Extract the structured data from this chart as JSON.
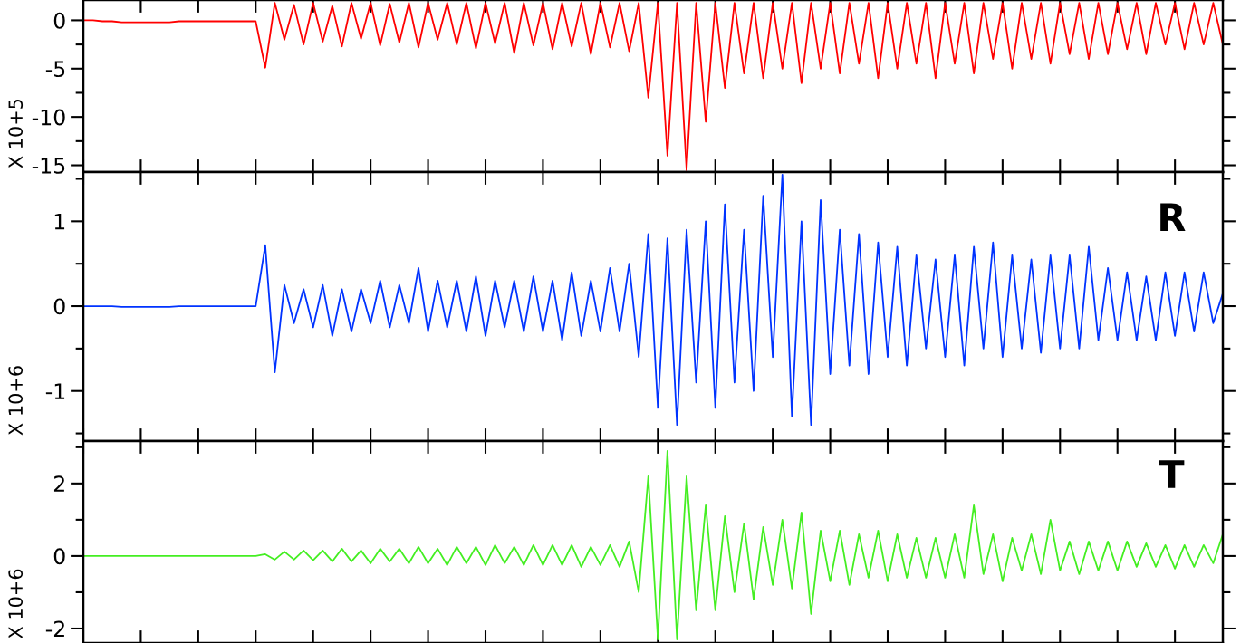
{
  "chart_data": [
    {
      "type": "line",
      "ylabel": "X 10+5",
      "ylim": [
        -15.7,
        2.1
      ],
      "yticks": [
        0,
        -5,
        -10,
        -15
      ],
      "categories": [
        null,
        null,
        null,
        null,
        null,
        null,
        null,
        null,
        null,
        null,
        null,
        null,
        null,
        null,
        null,
        null,
        null,
        null,
        null,
        null,
        null,
        null,
        null,
        null,
        null,
        null,
        null,
        null,
        null,
        null,
        null,
        null,
        null,
        null,
        null,
        null,
        null,
        null,
        null,
        null,
        null,
        null,
        null,
        null,
        null,
        null,
        null,
        null,
        null,
        null,
        null,
        null,
        null,
        null,
        null,
        null,
        null,
        null,
        null,
        null,
        null,
        null,
        null,
        null,
        null,
        null,
        null,
        null,
        null,
        null,
        null,
        null,
        null,
        null,
        null,
        null,
        null,
        null,
        null,
        null,
        null,
        null,
        null,
        null,
        null,
        null,
        null,
        null,
        null,
        null,
        null,
        null,
        null,
        null,
        null,
        null,
        null,
        null,
        null,
        null,
        null,
        null,
        null,
        null,
        null,
        null,
        null,
        null,
        null,
        null,
        null,
        null,
        null,
        null,
        null,
        null,
        null,
        null,
        null,
        null
      ],
      "series": [
        {
          "color": "#ff0000",
          "values": [
            0,
            0,
            -0.1,
            -0.1,
            -0.2,
            -0.2,
            -0.2,
            -0.2,
            -0.2,
            -0.2,
            -0.1,
            -0.1,
            -0.1,
            -0.1,
            -0.1,
            -0.1,
            -0.1,
            -0.1,
            -0.1,
            -4.9,
            1.8,
            -2.0,
            1.6,
            -2.5,
            1.8,
            -2.2,
            1.5,
            -2.7,
            1.8,
            -1.9,
            1.8,
            -2.6,
            1.7,
            -2.3,
            1.8,
            -2.8,
            1.8,
            -2.0,
            1.8,
            -2.5,
            1.8,
            -2.9,
            1.8,
            -2.4,
            1.8,
            -3.4,
            1.8,
            -2.6,
            1.8,
            -3.0,
            1.8,
            -2.7,
            1.8,
            -3.5,
            1.8,
            -2.8,
            1.8,
            -3.2,
            1.8,
            -8.0,
            1.8,
            -14,
            1.8,
            -15.5,
            1.8,
            -10.5,
            1.8,
            -7,
            1.8,
            -5.5,
            1.8,
            -6,
            1.8,
            -5,
            1.8,
            -6.5,
            1.8,
            -5,
            1.8,
            -5.5,
            1.8,
            -4.5,
            1.8,
            -6,
            1.8,
            -5,
            1.8,
            -4.5,
            1.8,
            -6,
            1.8,
            -4.5,
            1.8,
            -5.5,
            1.8,
            -4,
            1.8,
            -5,
            1.8,
            -4,
            1.8,
            -4.5,
            1.8,
            -3.5,
            1.8,
            -4,
            1.8,
            -3.5,
            1.8,
            -3,
            1.8,
            -3.5,
            1.8,
            -2.5,
            1.8,
            -3,
            1.8,
            -2.5,
            1.8,
            -2.5
          ]
        }
      ]
    },
    {
      "type": "line",
      "ylabel": "X 10+6",
      "ylim": [
        -1.59,
        1.58
      ],
      "yticks": [
        1,
        0,
        -1
      ],
      "annotations": [
        "R"
      ],
      "categories": [
        null,
        null,
        null,
        null,
        null,
        null,
        null,
        null,
        null,
        null,
        null,
        null,
        null,
        null,
        null,
        null,
        null,
        null,
        null,
        null,
        null,
        null,
        null,
        null,
        null,
        null,
        null,
        null,
        null,
        null,
        null,
        null,
        null,
        null,
        null,
        null,
        null,
        null,
        null,
        null,
        null,
        null,
        null,
        null,
        null,
        null,
        null,
        null,
        null,
        null,
        null,
        null,
        null,
        null,
        null,
        null,
        null,
        null,
        null,
        null,
        null,
        null,
        null,
        null,
        null,
        null,
        null,
        null,
        null,
        null,
        null,
        null,
        null,
        null,
        null,
        null,
        null,
        null,
        null,
        null,
        null,
        null,
        null,
        null,
        null,
        null,
        null,
        null,
        null,
        null,
        null,
        null,
        null,
        null,
        null,
        null,
        null,
        null,
        null,
        null,
        null,
        null,
        null,
        null,
        null,
        null,
        null,
        null,
        null,
        null,
        null,
        null,
        null,
        null,
        null,
        null,
        null,
        null,
        null,
        null
      ],
      "series": [
        {
          "color": "#0033ff",
          "values": [
            0,
            0,
            0,
            0,
            -0.01,
            -0.01,
            -0.01,
            -0.01,
            -0.01,
            -0.01,
            0,
            0,
            0,
            0,
            0,
            0,
            0,
            0,
            0,
            0.72,
            -0.78,
            0.25,
            -0.2,
            0.2,
            -0.25,
            0.25,
            -0.35,
            0.2,
            -0.3,
            0.2,
            -0.2,
            0.3,
            -0.25,
            0.25,
            -0.2,
            0.45,
            -0.3,
            0.3,
            -0.25,
            0.3,
            -0.3,
            0.35,
            -0.35,
            0.3,
            -0.25,
            0.3,
            -0.3,
            0.35,
            -0.3,
            0.3,
            -0.4,
            0.4,
            -0.35,
            0.3,
            -0.3,
            0.45,
            -0.3,
            0.5,
            -0.6,
            0.85,
            -1.2,
            0.8,
            -1.4,
            0.9,
            -0.9,
            1.0,
            -1.2,
            1.2,
            -0.9,
            0.9,
            -1.0,
            1.3,
            -0.6,
            1.55,
            -1.3,
            1.0,
            -1.4,
            1.25,
            -0.8,
            0.9,
            -0.7,
            0.85,
            -0.8,
            0.75,
            -0.6,
            0.7,
            -0.7,
            0.6,
            -0.5,
            0.55,
            -0.6,
            0.6,
            -0.7,
            0.7,
            -0.5,
            0.75,
            -0.6,
            0.6,
            -0.5,
            0.55,
            -0.55,
            0.6,
            -0.5,
            0.6,
            -0.5,
            0.7,
            -0.4,
            0.45,
            -0.4,
            0.4,
            -0.4,
            0.35,
            -0.4,
            0.4,
            -0.35,
            0.4,
            -0.3,
            0.4,
            -0.2,
            0.15
          ]
        }
      ]
    },
    {
      "type": "line",
      "ylabel": "X 10+6",
      "ylim": [
        -2.4,
        3.17
      ],
      "yticks": [
        2,
        0,
        -2
      ],
      "annotations": [
        "T"
      ],
      "categories": [
        null,
        null,
        null,
        null,
        null,
        null,
        null,
        null,
        null,
        null,
        null,
        null,
        null,
        null,
        null,
        null,
        null,
        null,
        null,
        null,
        null,
        null,
        null,
        null,
        null,
        null,
        null,
        null,
        null,
        null,
        null,
        null,
        null,
        null,
        null,
        null,
        null,
        null,
        null,
        null,
        null,
        null,
        null,
        null,
        null,
        null,
        null,
        null,
        null,
        null,
        null,
        null,
        null,
        null,
        null,
        null,
        null,
        null,
        null,
        null,
        null,
        null,
        null,
        null,
        null,
        null,
        null,
        null,
        null,
        null,
        null,
        null,
        null,
        null,
        null,
        null,
        null,
        null,
        null,
        null,
        null,
        null,
        null,
        null,
        null,
        null,
        null,
        null,
        null,
        null,
        null,
        null,
        null,
        null,
        null,
        null,
        null,
        null,
        null,
        null,
        null,
        null,
        null,
        null,
        null,
        null,
        null,
        null,
        null,
        null,
        null,
        null,
        null,
        null,
        null,
        null,
        null,
        null,
        null,
        null
      ],
      "series": [
        {
          "color": "#44ee22",
          "values": [
            0,
            0,
            0,
            0,
            0,
            0,
            0,
            0,
            0,
            0,
            0,
            0,
            0,
            0,
            0,
            0,
            0,
            0,
            0,
            0.05,
            -0.1,
            0.12,
            -0.1,
            0.15,
            -0.12,
            0.15,
            -0.15,
            0.2,
            -0.15,
            0.15,
            -0.2,
            0.2,
            -0.15,
            0.2,
            -0.2,
            0.25,
            -0.2,
            0.2,
            -0.25,
            0.25,
            -0.2,
            0.25,
            -0.25,
            0.3,
            -0.2,
            0.25,
            -0.25,
            0.3,
            -0.25,
            0.3,
            -0.25,
            0.3,
            -0.3,
            0.25,
            -0.25,
            0.3,
            -0.3,
            0.4,
            -1.0,
            2.2,
            -2.3,
            2.9,
            -2.3,
            2.2,
            -1.5,
            1.4,
            -1.5,
            1.1,
            -1.0,
            0.9,
            -1.2,
            0.8,
            -0.8,
            1.0,
            -0.9,
            1.2,
            -1.6,
            0.7,
            -0.7,
            0.7,
            -0.8,
            0.6,
            -0.6,
            0.7,
            -0.7,
            0.6,
            -0.6,
            0.5,
            -0.6,
            0.5,
            -0.6,
            0.6,
            -0.6,
            1.4,
            -0.5,
            0.6,
            -0.7,
            0.5,
            -0.4,
            0.6,
            -0.5,
            1.0,
            -0.4,
            0.4,
            -0.5,
            0.4,
            -0.4,
            0.4,
            -0.4,
            0.4,
            -0.3,
            0.35,
            -0.3,
            0.3,
            -0.35,
            0.3,
            -0.3,
            0.3,
            -0.2,
            0.6
          ]
        }
      ]
    }
  ]
}
